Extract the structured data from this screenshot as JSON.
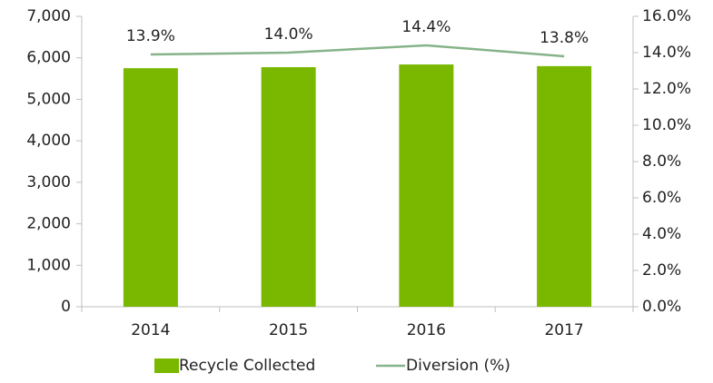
{
  "chart_data": {
    "type": "bar",
    "categories": [
      "2014",
      "2015",
      "2016",
      "2017"
    ],
    "series": [
      {
        "name": "Recycle Collected",
        "type": "bar",
        "color": "#7ab800",
        "values": [
          5750,
          5775,
          5840,
          5800
        ]
      },
      {
        "name": "Diversion (%)",
        "type": "line",
        "axis": "y2",
        "color": "#86b38a",
        "values": [
          13.9,
          14.0,
          14.4,
          13.8
        ],
        "value_labels": [
          "13.9%",
          "14.0%",
          "14.4%",
          "13.8%"
        ]
      }
    ],
    "ylim": [
      0,
      7000
    ],
    "yticks": [
      0,
      {
        "value": 1000,
        "label": "1,000"
      },
      {
        "value": 2000,
        "label": "2,000"
      },
      {
        "value": 3000,
        "label": "3,000"
      },
      {
        "value": 4000,
        "label": "4,000"
      },
      {
        "value": 5000,
        "label": "5,000"
      },
      {
        "value": 6000,
        "label": "6,000"
      },
      {
        "value": 7000,
        "label": "7,000"
      }
    ],
    "y2lim": [
      0,
      16
    ],
    "y2ticks": [
      {
        "value": 0,
        "label": "0.0%"
      },
      {
        "value": 2,
        "label": "2.0%"
      },
      {
        "value": 4,
        "label": "4.0%"
      },
      {
        "value": 6,
        "label": "6.0%"
      },
      {
        "value": 8,
        "label": "8.0%"
      },
      {
        "value": 10,
        "label": "10.0%"
      },
      {
        "value": 12,
        "label": "12.0%"
      },
      {
        "value": 14,
        "label": "14.0%"
      },
      {
        "value": 16,
        "label": "16.0%"
      }
    ],
    "legend": "bottom"
  }
}
